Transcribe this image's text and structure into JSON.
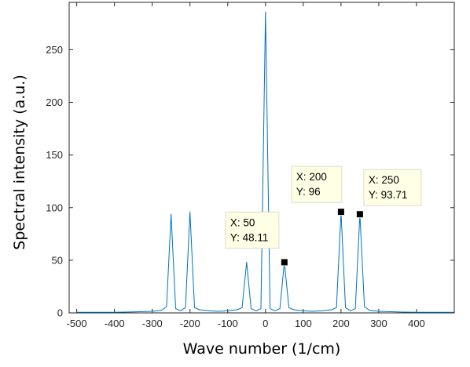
{
  "chart_data": {
    "type": "line",
    "title": "",
    "xlabel": "Wave number (1/cm)",
    "ylabel": "Spectral intensity (a.u.)",
    "xlim": [
      -520,
      500
    ],
    "ylim": [
      0,
      295
    ],
    "xticks": [
      "-500",
      "-400",
      "-300",
      "-200",
      "-100",
      "0",
      "100",
      "200",
      "300",
      "400"
    ],
    "xtick_values": [
      -500,
      -400,
      -300,
      -200,
      -100,
      0,
      100,
      200,
      300,
      400
    ],
    "yticks": [
      "0",
      "50",
      "100",
      "150",
      "200",
      "250"
    ],
    "ytick_values": [
      0,
      50,
      100,
      150,
      200,
      250
    ],
    "grid": false,
    "line_color": "#0072bd",
    "series": [
      {
        "x": [
          -500,
          -450,
          -400,
          -350,
          -300,
          -275,
          -262,
          -250,
          -238,
          -225,
          -212,
          -200,
          -188,
          -175,
          -150,
          -125,
          -100,
          -75,
          -62,
          -50,
          -38,
          -25,
          -12,
          0,
          12,
          25,
          38,
          50,
          62,
          75,
          100,
          125,
          150,
          175,
          188,
          200,
          212,
          225,
          238,
          250,
          262,
          275,
          300,
          350,
          400,
          450,
          500
        ],
        "y": [
          0.5,
          0.5,
          0.6,
          0.9,
          1.5,
          2.5,
          6,
          93.71,
          4,
          2,
          5,
          96,
          5,
          3,
          2,
          1.5,
          2,
          3,
          5,
          48.11,
          4,
          2,
          4,
          286,
          4,
          2,
          4,
          48.11,
          5,
          3,
          2,
          1.5,
          2,
          3,
          5,
          96,
          5,
          2,
          4,
          93.71,
          6,
          2.5,
          1.5,
          0.9,
          0.6,
          0.5,
          0.5
        ]
      }
    ],
    "datatips": [
      {
        "x_label": "X: 50",
        "y_label": "Y: 48.11",
        "x": 50,
        "y": 48.11
      },
      {
        "x_label": "X: 200",
        "y_label": "Y: 96",
        "x": 200,
        "y": 96
      },
      {
        "x_label": "X: 250",
        "y_label": "Y: 93.71",
        "x": 250,
        "y": 93.71
      }
    ],
    "datatip_background": "#ffffe6"
  }
}
